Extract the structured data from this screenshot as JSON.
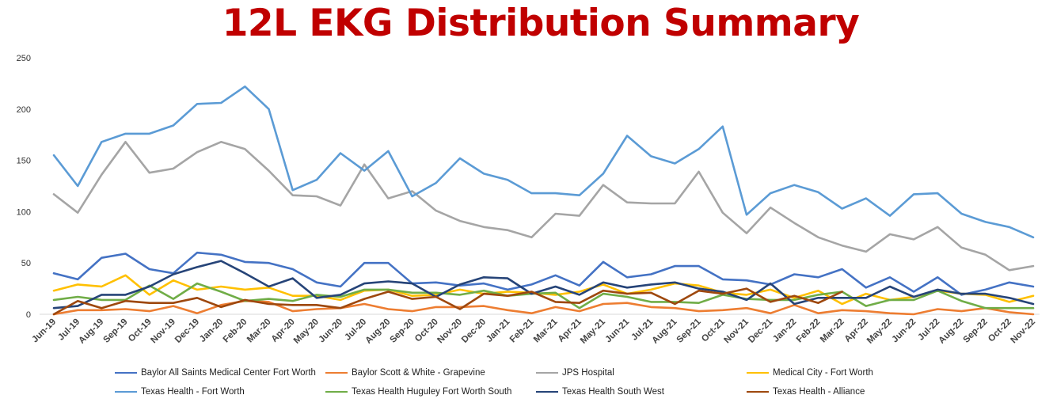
{
  "chart_data": {
    "type": "line",
    "title": "12L EKG Distribution Summary",
    "ylim": [
      0,
      250
    ],
    "yticks": [
      0,
      50,
      100,
      150,
      200,
      250
    ],
    "grid": false,
    "legend_position": "bottom",
    "categories": [
      "Jun-19",
      "Jul-19",
      "Aug-19",
      "Sep-19",
      "Oct-19",
      "Nov-19",
      "Dec-19",
      "Jan-20",
      "Feb-20",
      "Mar-20",
      "Apr-20",
      "May-20",
      "Jun-20",
      "Jul-20",
      "Aug-20",
      "Sep-20",
      "Oct-20",
      "Nov-20",
      "Dec-20",
      "Jan-21",
      "Feb-21",
      "Mar-21",
      "Apr-21",
      "May-21",
      "Jun-21",
      "Jul-21",
      "Aug-21",
      "Sep-21",
      "Oct-21",
      "Nov-21",
      "Dec-21",
      "Jan-22",
      "Feb-22",
      "Mar-22",
      "Apr-22",
      "May-22",
      "Jun-22",
      "Jul-22",
      "Aug-22",
      "Sep-22",
      "Oct-22",
      "Nov-22"
    ],
    "series": [
      {
        "name": "Baylor All Saints Medical Center Fort Worth",
        "color": "#4472c4",
        "values": [
          40,
          34,
          55,
          59,
          44,
          40,
          60,
          58,
          51,
          50,
          44,
          31,
          27,
          50,
          50,
          30,
          31,
          28,
          30,
          24,
          29,
          38,
          28,
          51,
          36,
          39,
          47,
          47,
          34,
          33,
          29,
          39,
          36,
          44,
          26,
          36,
          22,
          36,
          19,
          24,
          31,
          27
        ]
      },
      {
        "name": "Baylor Scott & White - Grapevine",
        "color": "#ed7d31",
        "values": [
          0,
          4,
          4,
          5,
          3,
          8,
          1,
          9,
          13,
          12,
          3,
          5,
          6,
          10,
          5,
          3,
          7,
          7,
          8,
          4,
          1,
          7,
          3,
          10,
          11,
          7,
          6,
          3,
          4,
          6,
          1,
          9,
          1,
          4,
          3,
          1,
          0,
          5,
          3,
          6,
          2,
          0
        ]
      },
      {
        "name": "JPS Hospital",
        "color": "#a5a5a5",
        "values": [
          117,
          99,
          136,
          168,
          138,
          142,
          158,
          168,
          161,
          140,
          116,
          115,
          106,
          146,
          113,
          120,
          101,
          91,
          85,
          82,
          75,
          98,
          96,
          126,
          109,
          108,
          108,
          139,
          99,
          79,
          104,
          89,
          75,
          67,
          61,
          78,
          73,
          85,
          65,
          58,
          43,
          47
        ]
      },
      {
        "name": "Medical City - Fort Worth",
        "color": "#ffc000",
        "values": [
          23,
          29,
          27,
          38,
          19,
          33,
          24,
          27,
          24,
          26,
          18,
          18,
          14,
          23,
          24,
          18,
          19,
          24,
          20,
          22,
          21,
          19,
          22,
          29,
          20,
          24,
          30,
          28,
          21,
          19,
          24,
          16,
          23,
          10,
          20,
          14,
          17,
          23,
          20,
          19,
          12,
          18
        ]
      },
      {
        "name": "Texas Health - Fort Worth",
        "color": "#5b9bd5",
        "values": [
          155,
          125,
          168,
          176,
          176,
          184,
          205,
          206,
          222,
          200,
          121,
          131,
          157,
          140,
          159,
          115,
          128,
          152,
          137,
          131,
          118,
          118,
          116,
          137,
          174,
          154,
          147,
          161,
          183,
          97,
          118,
          126,
          119,
          103,
          113,
          96,
          117,
          118,
          98,
          90,
          85,
          75
        ]
      },
      {
        "name": "Texas Health Huguley Fort Worth South",
        "color": "#70ad47",
        "values": [
          14,
          17,
          14,
          14,
          28,
          15,
          30,
          22,
          13,
          15,
          13,
          19,
          17,
          24,
          24,
          21,
          21,
          19,
          23,
          18,
          20,
          21,
          6,
          20,
          17,
          12,
          12,
          11,
          19,
          15,
          14,
          14,
          19,
          22,
          8,
          14,
          14,
          23,
          13,
          6,
          6,
          6
        ]
      },
      {
        "name": "Texas Health South West",
        "color": "#264478",
        "values": [
          6,
          8,
          19,
          19,
          27,
          39,
          46,
          52,
          40,
          27,
          35,
          16,
          19,
          30,
          32,
          30,
          17,
          29,
          36,
          35,
          20,
          27,
          19,
          31,
          26,
          29,
          31,
          25,
          22,
          14,
          30,
          10,
          16,
          16,
          16,
          27,
          17,
          24,
          20,
          20,
          16,
          10
        ]
      },
      {
        "name": "Texas Health - Alliance",
        "color": "#9e480e",
        "values": [
          0,
          13,
          6,
          13,
          11,
          11,
          16,
          7,
          14,
          10,
          9,
          9,
          6,
          15,
          22,
          15,
          17,
          5,
          20,
          18,
          22,
          12,
          11,
          23,
          20,
          21,
          10,
          23,
          20,
          25,
          12,
          18,
          11,
          22,
          null,
          null,
          null,
          null,
          null,
          null,
          null,
          null
        ]
      }
    ]
  }
}
